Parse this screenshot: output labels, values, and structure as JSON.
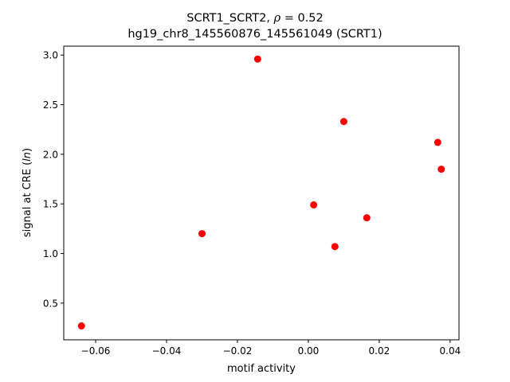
{
  "chart_data": {
    "type": "scatter",
    "title_line1_prefix": "SCRT1_SCRT2, ",
    "title_line1_rho_symbol": "ρ",
    "title_line1_rho_value": " = 0.52",
    "title_line2": "hg19_chr8_145560876_145561049 (SCRT1)",
    "xlabel": "motif activity",
    "ylabel_prefix": "signal at CRE (",
    "ylabel_italic": "ln",
    "ylabel_suffix": ")",
    "xlim": [
      -0.069,
      0.0425
    ],
    "ylim": [
      0.13,
      3.09
    ],
    "x_ticks": [
      -0.06,
      -0.04,
      -0.02,
      0.0,
      0.02,
      0.04
    ],
    "x_tick_labels": [
      "−0.06",
      "−0.04",
      "−0.02",
      "0.00",
      "0.02",
      "0.04"
    ],
    "y_ticks": [
      0.5,
      1.0,
      1.5,
      2.0,
      2.5,
      3.0
    ],
    "y_tick_labels": [
      "0.5",
      "1.0",
      "1.5",
      "2.0",
      "2.5",
      "3.0"
    ],
    "grid": false,
    "marker_color": "#ff0000",
    "points": [
      {
        "x": -0.064,
        "y": 0.27
      },
      {
        "x": -0.03,
        "y": 1.2
      },
      {
        "x": -0.0143,
        "y": 2.96
      },
      {
        "x": 0.0015,
        "y": 1.49
      },
      {
        "x": 0.0075,
        "y": 1.07
      },
      {
        "x": 0.01,
        "y": 2.33
      },
      {
        "x": 0.0165,
        "y": 1.36
      },
      {
        "x": 0.0365,
        "y": 2.12
      },
      {
        "x": 0.0375,
        "y": 1.85
      }
    ]
  }
}
